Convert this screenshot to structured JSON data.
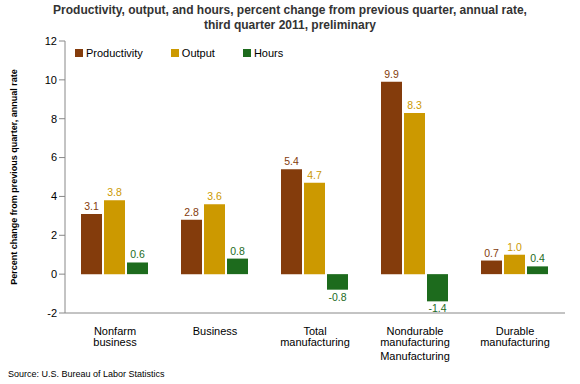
{
  "chart_data": {
    "type": "bar",
    "title": "Productivity, output, and hours, percent change from previous quarter, annual rate, third quarter 2011, preliminary",
    "y_label": "Percent change from previous quarter, annual rate",
    "source": "Source: U.S. Bureau of Labor Statistics",
    "categories": [
      "Nonfarm business",
      "Business",
      "Total manufacturing",
      "Nondurable manufacturing",
      "Durable manufacturing"
    ],
    "groups": [
      {
        "label": "Manufacturing",
        "categories": [
          "Total manufacturing",
          "Nondurable manufacturing",
          "Durable manufacturing"
        ]
      }
    ],
    "series": [
      {
        "name": "Productivity",
        "color": "#843c0c",
        "values": [
          3.1,
          2.8,
          5.4,
          9.9,
          0.7
        ],
        "value_labels": [
          "3.1",
          "2.8",
          "5.4",
          "9.9",
          "0.7"
        ]
      },
      {
        "name": "Output",
        "color": "#cc9900",
        "values": [
          3.8,
          3.6,
          4.7,
          8.3,
          1.0
        ],
        "value_labels": [
          "3.8",
          "3.6",
          "4.7",
          "8.3",
          "1.0"
        ]
      },
      {
        "name": "Hours",
        "color": "#1d6b1d",
        "values": [
          0.6,
          0.8,
          -0.8,
          -1.4,
          0.4
        ],
        "value_labels": [
          "0.6",
          "0.8",
          "-0.8",
          "-1.4",
          "0.4"
        ]
      }
    ],
    "ylim": [
      -2,
      12
    ],
    "yticks": [
      -2,
      0,
      2,
      4,
      6,
      8,
      10,
      12
    ],
    "grid": false,
    "legend": "upper left",
    "data_labels": true
  }
}
